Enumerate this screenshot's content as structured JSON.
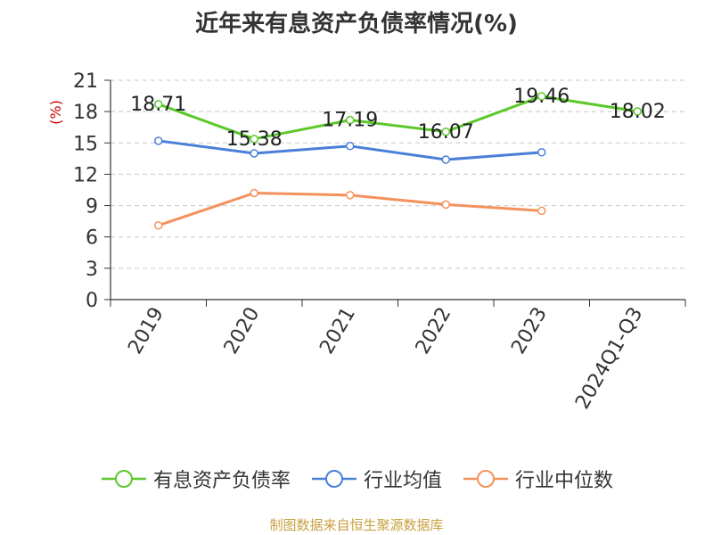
{
  "chart_data": {
    "type": "line",
    "title": "近年来有息资产负债率情况(%)",
    "ylabel": "(%)",
    "xlabel": "",
    "categories": [
      "2019",
      "2020",
      "2021",
      "2022",
      "2023",
      "2024Q1-Q3"
    ],
    "ylim": [
      0,
      21
    ],
    "yticks": [
      0,
      3,
      6,
      9,
      12,
      15,
      18,
      21
    ],
    "grid": true,
    "legend_position": "bottom",
    "series": [
      {
        "name": "有息资产负债率",
        "color": "#5cc82a",
        "values": [
          18.71,
          15.38,
          17.19,
          16.07,
          19.46,
          18.02
        ],
        "labels": [
          "18.71",
          "15.38",
          "17.19",
          "16.07",
          "19.46",
          "18.02"
        ]
      },
      {
        "name": "行业均值",
        "color": "#4a7fd8",
        "values": [
          15.2,
          14.0,
          14.7,
          13.4,
          14.1,
          null
        ]
      },
      {
        "name": "行业中位数",
        "color": "#f4915c",
        "values": [
          7.1,
          10.2,
          10.0,
          9.1,
          8.5,
          null
        ]
      }
    ]
  },
  "source": "制图数据来自恒生聚源数据库"
}
